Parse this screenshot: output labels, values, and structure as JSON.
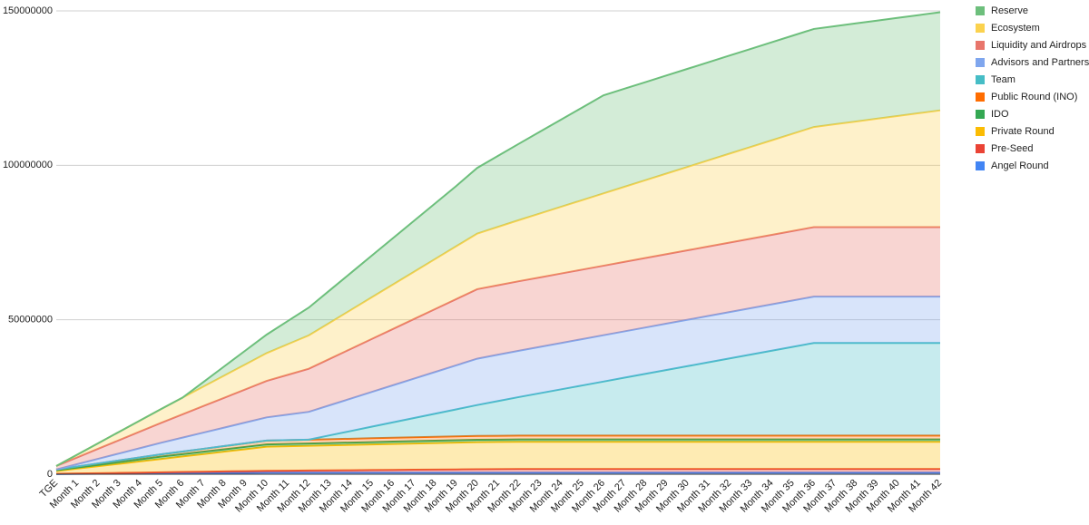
{
  "chart_data": {
    "type": "area",
    "stacked": true,
    "grid": true,
    "legend": "right",
    "categories": [
      "TGE",
      "Month 1",
      "Month 2",
      "Month 3",
      "Month 4",
      "Month 5",
      "Month 6",
      "Month 7",
      "Month 8",
      "Month 9",
      "Month 10",
      "Month 11",
      "Month 12",
      "Month 13",
      "Month 14",
      "Month 15",
      "Month 16",
      "Month 17",
      "Month 18",
      "Month 19",
      "Month 20",
      "Month 21",
      "Month 22",
      "Month 23",
      "Month 24",
      "Month 25",
      "Month 26",
      "Month 27",
      "Month 28",
      "Month 29",
      "Month 30",
      "Month 31",
      "Month 32",
      "Month 33",
      "Month 34",
      "Month 35",
      "Month 36",
      "Month 37",
      "Month 38",
      "Month 39",
      "Month 40",
      "Month 41",
      "Month 42"
    ],
    "ylim": [
      0,
      150000000
    ],
    "yticks": [
      0,
      50000000,
      100000000,
      150000000
    ],
    "series": [
      {
        "name": "Reserve",
        "color": "#6dbf7c",
        "values": [
          0,
          0,
          0,
          0,
          0,
          0,
          0,
          1500000,
          3000000,
          4500000,
          6000000,
          7500000,
          9000000,
          10500000,
          12000000,
          13500000,
          15000000,
          16500000,
          18000000,
          19500000,
          21250000,
          23000000,
          24750000,
          26500000,
          28250000,
          30000000,
          31750000,
          31750000,
          31750000,
          31750000,
          31750000,
          31750000,
          31750000,
          31750000,
          31750000,
          31750000,
          31750000,
          31750000,
          31750000,
          31750000,
          31750000,
          31750000,
          31750000
        ]
      },
      {
        "name": "Ecosystem",
        "color": "#fbd24e",
        "values": [
          0,
          900000,
          1800000,
          2700000,
          3600000,
          4500000,
          5400000,
          6300000,
          7200000,
          8100000,
          9000000,
          9900000,
          10800000,
          11700000,
          12600000,
          13500000,
          14400000,
          15300000,
          16200000,
          17100000,
          18000000,
          18900000,
          19800000,
          20700000,
          21600000,
          22500000,
          23400000,
          24300000,
          25200000,
          26100000,
          27000000,
          27900000,
          28800000,
          29700000,
          30600000,
          31500000,
          32400000,
          33300000,
          34200000,
          35100000,
          36000000,
          36900000,
          37800000
        ]
      },
      {
        "name": "Liquidity and Airdrops",
        "color": "#e8756b",
        "values": [
          1125000,
          2193750,
          3262500,
          4331250,
          5400000,
          6468750,
          7537500,
          8606250,
          9675000,
          10743750,
          11812500,
          12881250,
          13950000,
          15018750,
          16087500,
          17156250,
          18225000,
          19293750,
          20362500,
          21431250,
          22500000,
          22500000,
          22500000,
          22500000,
          22500000,
          22500000,
          22500000,
          22500000,
          22500000,
          22500000,
          22500000,
          22500000,
          22500000,
          22500000,
          22500000,
          22500000,
          22500000,
          22500000,
          22500000,
          22500000,
          22500000,
          22500000,
          22500000
        ]
      },
      {
        "name": "Advisors and Partners",
        "color": "#7fa6ee",
        "values": [
          0,
          750000,
          1500000,
          2250000,
          3000000,
          3750000,
          4500000,
          5250000,
          6000000,
          6750000,
          7500000,
          8250000,
          9000000,
          9750000,
          10500000,
          11250000,
          12000000,
          12750000,
          13500000,
          14250000,
          15000000,
          15000000,
          15000000,
          15000000,
          15000000,
          15000000,
          15000000,
          15000000,
          15000000,
          15000000,
          15000000,
          15000000,
          15000000,
          15000000,
          15000000,
          15000000,
          15000000,
          15000000,
          15000000,
          15000000,
          15000000,
          15000000,
          15000000
        ]
      },
      {
        "name": "Team",
        "color": "#46bdc6",
        "values": [
          0,
          0,
          0,
          0,
          0,
          0,
          0,
          0,
          0,
          0,
          0,
          0,
          0,
          1250000,
          2500000,
          3750000,
          5000000,
          6250000,
          7500000,
          8750000,
          10000000,
          11250000,
          12500000,
          13750000,
          15000000,
          16250000,
          17500000,
          18750000,
          20000000,
          21250000,
          22500000,
          23750000,
          25000000,
          26250000,
          27500000,
          28750000,
          30000000,
          30000000,
          30000000,
          30000000,
          30000000,
          30000000,
          30000000
        ]
      },
      {
        "name": "Public Round (INO)",
        "color": "#ff6d01",
        "values": [
          250000,
          350000,
          450000,
          550000,
          650000,
          750000,
          850000,
          950000,
          1050000,
          1150000,
          1250000,
          1250000,
          1250000,
          1250000,
          1250000,
          1250000,
          1250000,
          1250000,
          1250000,
          1250000,
          1250000,
          1250000,
          1250000,
          1250000,
          1250000,
          1250000,
          1250000,
          1250000,
          1250000,
          1250000,
          1250000,
          1250000,
          1250000,
          1250000,
          1250000,
          1250000,
          1250000,
          1250000,
          1250000,
          1250000,
          1250000,
          1250000,
          1250000
        ]
      },
      {
        "name": "IDO",
        "color": "#34a853",
        "values": [
          250000,
          350000,
          450000,
          550000,
          650000,
          750000,
          750000,
          750000,
          750000,
          750000,
          750000,
          750000,
          750000,
          750000,
          750000,
          750000,
          750000,
          750000,
          750000,
          750000,
          750000,
          750000,
          750000,
          750000,
          750000,
          750000,
          750000,
          750000,
          750000,
          750000,
          750000,
          750000,
          750000,
          750000,
          750000,
          750000,
          750000,
          750000,
          750000,
          750000,
          750000,
          750000,
          750000
        ]
      },
      {
        "name": "Private Round",
        "color": "#fbbc04",
        "values": [
          880000,
          1572000,
          2264000,
          2956000,
          3648000,
          4340000,
          5032000,
          5724000,
          6416000,
          7108000,
          7800000,
          7900000,
          8000000,
          8100000,
          8200000,
          8300000,
          8400000,
          8500000,
          8600000,
          8700000,
          8800000,
          8800000,
          8800000,
          8800000,
          8800000,
          8800000,
          8800000,
          8800000,
          8800000,
          8800000,
          8800000,
          8800000,
          8800000,
          8800000,
          8800000,
          8800000,
          8800000,
          8800000,
          8800000,
          8800000,
          8800000,
          8800000,
          8800000
        ]
      },
      {
        "name": "Pre-Seed",
        "color": "#ea4335",
        "values": [
          100000,
          150000,
          200000,
          250000,
          300000,
          350000,
          400000,
          450000,
          500000,
          550000,
          600000,
          650000,
          700000,
          750000,
          800000,
          850000,
          900000,
          950000,
          1000000,
          1050000,
          1100000,
          1150000,
          1200000,
          1200000,
          1200000,
          1200000,
          1200000,
          1200000,
          1200000,
          1200000,
          1200000,
          1200000,
          1200000,
          1200000,
          1200000,
          1200000,
          1200000,
          1200000,
          1200000,
          1200000,
          1200000,
          1200000,
          1200000
        ]
      },
      {
        "name": "Angel Round",
        "color": "#4285f4",
        "values": [
          50000,
          95000,
          140000,
          185000,
          230000,
          275000,
          320000,
          365000,
          410000,
          455000,
          500000,
          500000,
          500000,
          500000,
          500000,
          500000,
          500000,
          500000,
          500000,
          500000,
          500000,
          500000,
          500000,
          500000,
          500000,
          500000,
          500000,
          500000,
          500000,
          500000,
          500000,
          500000,
          500000,
          500000,
          500000,
          500000,
          500000,
          500000,
          500000,
          500000,
          500000,
          500000,
          500000
        ]
      }
    ]
  }
}
